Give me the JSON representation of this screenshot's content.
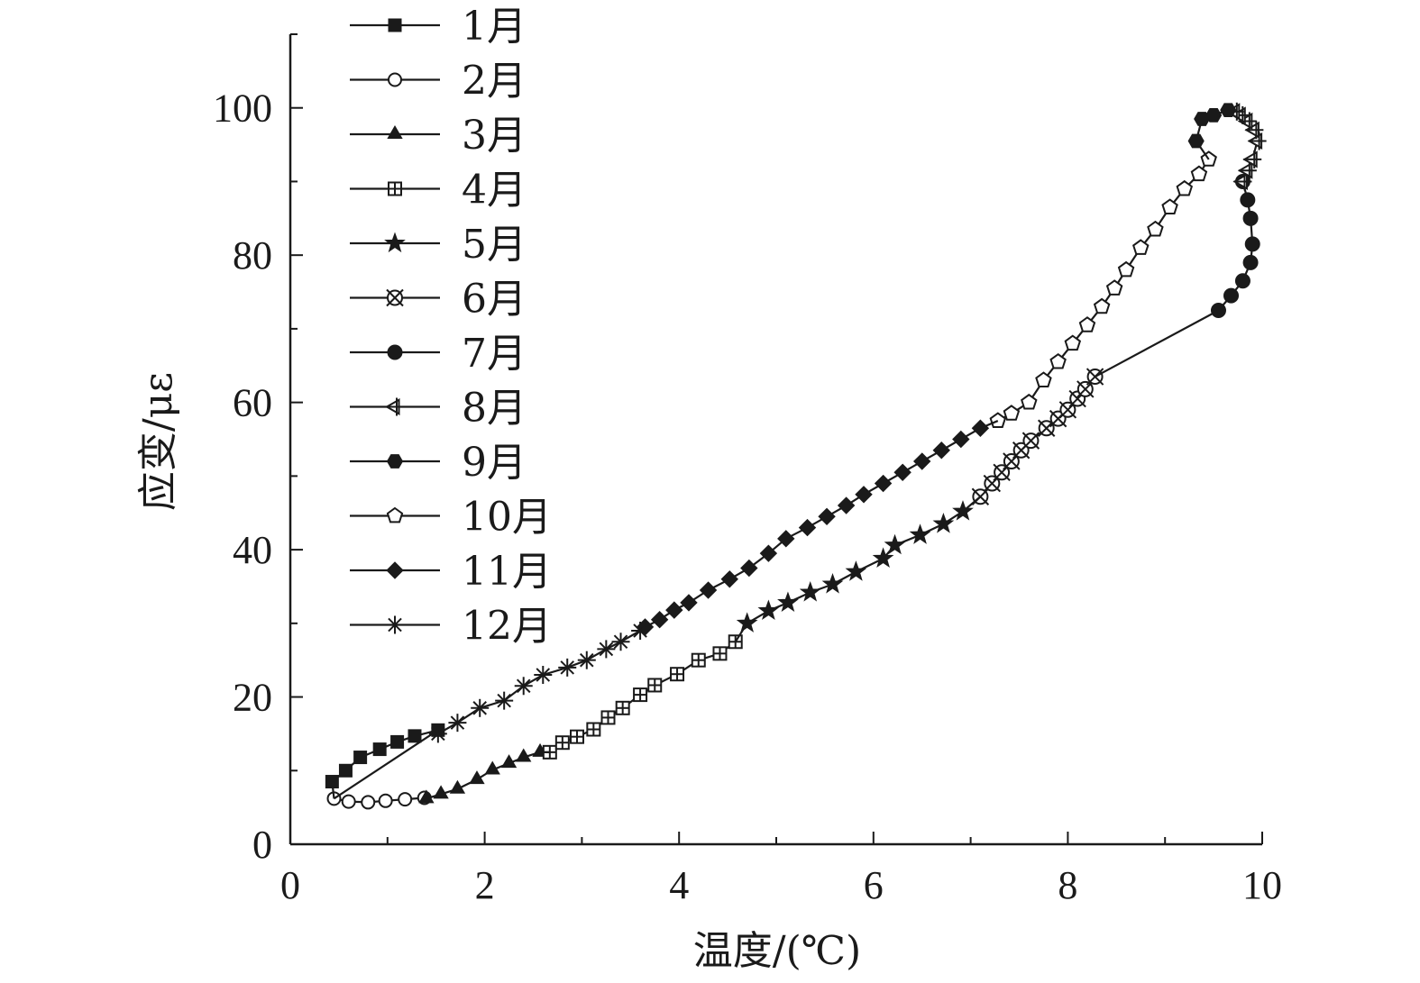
{
  "chart_data": {
    "type": "line",
    "xlabel": "温度/(℃)",
    "ylabel": "应变/με",
    "xlim": [
      0,
      10
    ],
    "ylim": [
      0,
      110
    ],
    "xticks": [
      0,
      2,
      4,
      6,
      8,
      10
    ],
    "xtick_labels": [
      "0",
      "2",
      "4",
      "6",
      "8",
      "10"
    ],
    "yticks": [
      0,
      20,
      40,
      60,
      80,
      100
    ],
    "ytick_labels": [
      "0",
      "20",
      "40",
      "60",
      "80",
      "100"
    ],
    "grid": false,
    "legend_position": "top-left",
    "line_color": "#1a1a1a",
    "series": [
      {
        "name": "1月",
        "marker": "square",
        "x": [
          0.43,
          0.57,
          0.72,
          0.92,
          1.1,
          1.28,
          1.52
        ],
        "y": [
          8.5,
          10,
          11.8,
          12.9,
          13.9,
          14.7,
          15.5
        ]
      },
      {
        "name": "2月",
        "marker": "circle",
        "x": [
          0.45,
          0.6,
          0.8,
          0.98,
          1.18,
          1.38
        ],
        "y": [
          6.2,
          5.8,
          5.7,
          5.9,
          6.1,
          6.3
        ]
      },
      {
        "name": "3月",
        "marker": "triangle",
        "x": [
          1.4,
          1.55,
          1.72,
          1.92,
          2.08,
          2.25,
          2.4,
          2.57
        ],
        "y": [
          6.2,
          6.8,
          7.5,
          8.8,
          10.1,
          11,
          11.8,
          12.5
        ]
      },
      {
        "name": "4月",
        "marker": "square-cross",
        "x": [
          2.67,
          2.8,
          2.95,
          3.12,
          3.27,
          3.42,
          3.6,
          3.75,
          3.98,
          4.2,
          4.42,
          4.58
        ],
        "y": [
          12.5,
          13.8,
          14.6,
          15.6,
          17.2,
          18.5,
          20.3,
          21.6,
          23.1,
          25,
          25.9,
          27.5
        ]
      },
      {
        "name": "5月",
        "marker": "star",
        "x": [
          4.7,
          4.92,
          5.12,
          5.35,
          5.58,
          5.82,
          6.1,
          6.22,
          6.48,
          6.72,
          6.92
        ],
        "y": [
          30,
          31.7,
          32.8,
          34.2,
          35.3,
          37,
          38.8,
          40.6,
          42,
          43.5,
          45.2
        ]
      },
      {
        "name": "6月",
        "marker": "circled-x",
        "x": [
          7.1,
          7.22,
          7.32,
          7.42,
          7.52,
          7.62,
          7.78,
          7.9,
          8.0,
          8.1,
          8.18,
          8.28
        ],
        "y": [
          47.2,
          49,
          50.5,
          52,
          53.5,
          54.8,
          56.5,
          57.8,
          59,
          60.5,
          61.8,
          63.5
        ]
      },
      {
        "name": "7月",
        "marker": "circle-filled",
        "x": [
          9.55,
          9.68,
          9.8,
          9.88,
          9.9,
          9.88,
          9.85,
          9.8
        ],
        "y": [
          72.5,
          74.5,
          76.5,
          79,
          81.5,
          85,
          87.5,
          90
        ]
      },
      {
        "name": "8月",
        "marker": "triangle-left-cross",
        "x": [
          9.8,
          9.85,
          9.9,
          9.95,
          9.92,
          9.85,
          9.78,
          9.72
        ],
        "y": [
          90,
          91.5,
          93,
          95.5,
          97,
          98.2,
          99,
          99.5
        ]
      },
      {
        "name": "9月",
        "marker": "hexagon-filled",
        "x": [
          9.65,
          9.5,
          9.38,
          9.32
        ],
        "y": [
          99.7,
          99,
          98.5,
          95.5
        ]
      },
      {
        "name": "10月",
        "marker": "pentagon",
        "x": [
          9.45,
          9.35,
          9.2,
          9.05,
          8.9,
          8.75,
          8.6,
          8.48,
          8.35,
          8.2,
          8.05,
          7.9,
          7.75,
          7.6,
          7.42,
          7.28
        ],
        "y": [
          93,
          91,
          89,
          86.5,
          83.5,
          81,
          78,
          75.5,
          73,
          70.5,
          68,
          65.5,
          63,
          60,
          58.5,
          57.5
        ]
      },
      {
        "name": "11月",
        "marker": "diamond-filled",
        "x": [
          7.1,
          6.9,
          6.7,
          6.5,
          6.3,
          6.1,
          5.9,
          5.72,
          5.52,
          5.32,
          5.1,
          4.92,
          4.72,
          4.52,
          4.3,
          4.1,
          3.95,
          3.8,
          3.65
        ],
        "y": [
          56.5,
          55,
          53.5,
          52,
          50.5,
          49,
          47.5,
          46,
          44.5,
          43,
          41.5,
          39.5,
          37.5,
          36,
          34.5,
          32.8,
          31.8,
          30.5,
          29.5
        ]
      },
      {
        "name": "12月",
        "marker": "asterisk",
        "x": [
          3.6,
          3.4,
          3.25,
          3.05,
          2.85,
          2.6,
          2.4,
          2.2,
          1.95,
          1.72,
          1.52
        ],
        "y": [
          29,
          27.5,
          26.5,
          25,
          24,
          23,
          21.5,
          19.5,
          18.5,
          16.5,
          15
        ]
      }
    ]
  }
}
